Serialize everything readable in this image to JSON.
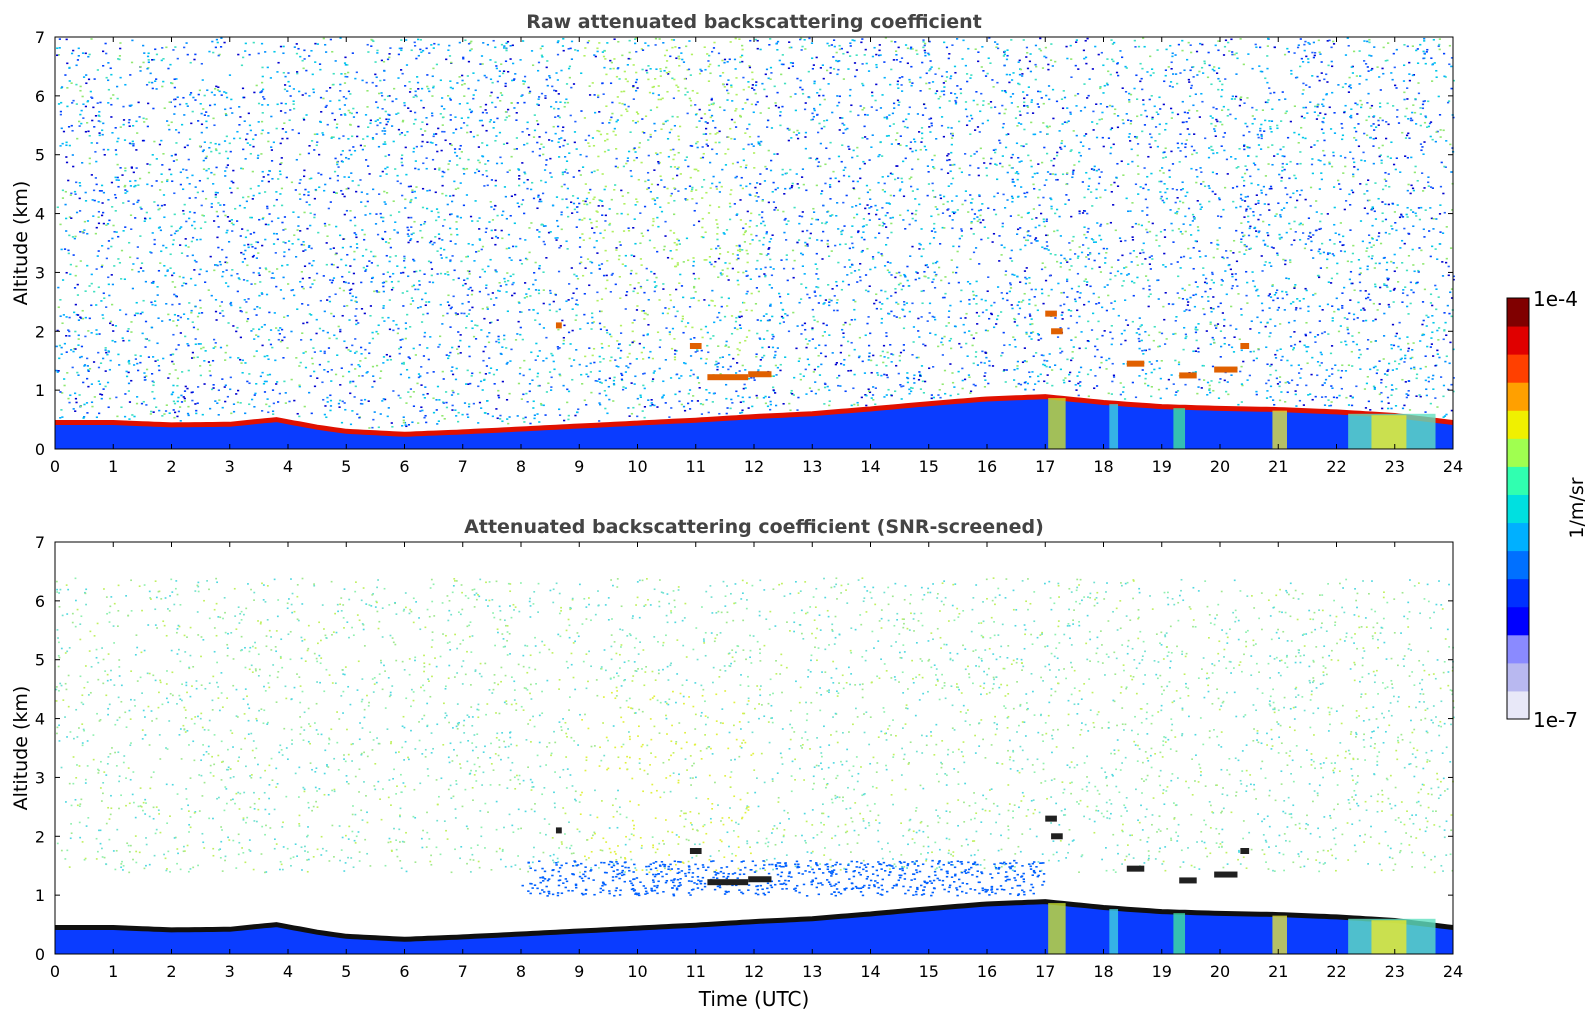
{
  "chart_data": [
    {
      "type": "heatmap",
      "title": "Raw attenuated backscattering coefficient",
      "xlabel": "",
      "ylabel": "Altitude (km)",
      "xlim": [
        0,
        24
      ],
      "ylim": [
        0,
        7
      ],
      "x_ticks": [
        "0",
        "1",
        "2",
        "3",
        "4",
        "5",
        "6",
        "7",
        "8",
        "9",
        "10",
        "11",
        "12",
        "13",
        "14",
        "15",
        "16",
        "17",
        "18",
        "19",
        "20",
        "21",
        "22",
        "23",
        "24"
      ],
      "y_ticks": [
        "0",
        "1",
        "2",
        "3",
        "4",
        "5",
        "6",
        "7"
      ],
      "layer_top_km": [
        {
          "t": 0,
          "h": 0.48
        },
        {
          "t": 1,
          "h": 0.48
        },
        {
          "t": 2,
          "h": 0.44
        },
        {
          "t": 3,
          "h": 0.45
        },
        {
          "t": 3.8,
          "h": 0.53
        },
        {
          "t": 4.5,
          "h": 0.4
        },
        {
          "t": 5,
          "h": 0.33
        },
        {
          "t": 6,
          "h": 0.28
        },
        {
          "t": 7,
          "h": 0.32
        },
        {
          "t": 8,
          "h": 0.37
        },
        {
          "t": 9,
          "h": 0.42
        },
        {
          "t": 10,
          "h": 0.47
        },
        {
          "t": 11,
          "h": 0.52
        },
        {
          "t": 12,
          "h": 0.58
        },
        {
          "t": 13,
          "h": 0.63
        },
        {
          "t": 14,
          "h": 0.71
        },
        {
          "t": 15,
          "h": 0.8
        },
        {
          "t": 16,
          "h": 0.88
        },
        {
          "t": 17,
          "h": 0.92
        },
        {
          "t": 18,
          "h": 0.82
        },
        {
          "t": 19,
          "h": 0.75
        },
        {
          "t": 20,
          "h": 0.72
        },
        {
          "t": 21,
          "h": 0.7
        },
        {
          "t": 22,
          "h": 0.66
        },
        {
          "t": 23,
          "h": 0.6
        },
        {
          "t": 24,
          "h": 0.48
        }
      ],
      "clouds": [
        {
          "t0": 10.9,
          "t1": 11.1,
          "h": 1.75
        },
        {
          "t0": 11.2,
          "t1": 11.9,
          "h": 1.22
        },
        {
          "t0": 11.9,
          "t1": 12.3,
          "h": 1.27
        },
        {
          "t0": 17.0,
          "t1": 17.2,
          "h": 2.3
        },
        {
          "t0": 17.1,
          "t1": 17.3,
          "h": 2.0
        },
        {
          "t0": 18.4,
          "t1": 18.7,
          "h": 1.45
        },
        {
          "t0": 19.3,
          "t1": 19.6,
          "h": 1.25
        },
        {
          "t0": 19.9,
          "t1": 20.3,
          "h": 1.35
        },
        {
          "t0": 20.35,
          "t1": 20.5,
          "h": 1.75
        },
        {
          "t0": 8.6,
          "t1": 8.7,
          "h": 2.1
        }
      ]
    },
    {
      "type": "heatmap",
      "title": "Attenuated backscattering coefficient (SNR-screened)",
      "xlabel": "Time (UTC)",
      "ylabel": "Altitude (km)",
      "xlim": [
        0,
        24
      ],
      "ylim": [
        0,
        7
      ],
      "x_ticks": [
        "0",
        "1",
        "2",
        "3",
        "4",
        "5",
        "6",
        "7",
        "8",
        "9",
        "10",
        "11",
        "12",
        "13",
        "14",
        "15",
        "16",
        "17",
        "18",
        "19",
        "20",
        "21",
        "22",
        "23",
        "24"
      ],
      "y_ticks": [
        "0",
        "1",
        "2",
        "3",
        "4",
        "5",
        "6",
        "7"
      ]
    }
  ],
  "colorbar": {
    "max_label": "1e-4",
    "min_label": "1e-7",
    "unit_label": "1/m/sr",
    "range": [
      1e-07,
      0.0001
    ],
    "scale": "log",
    "colors": [
      "#e8e8f8",
      "#b8b8f0",
      "#8a8aff",
      "#0000ff",
      "#0030ff",
      "#0070ff",
      "#00b0ff",
      "#00e0e0",
      "#30ffb0",
      "#a0ff50",
      "#f0f000",
      "#ffa000",
      "#ff4000",
      "#e00000",
      "#800000"
    ]
  }
}
